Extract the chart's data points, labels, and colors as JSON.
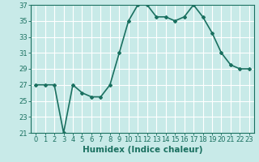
{
  "x": [
    0,
    1,
    2,
    3,
    4,
    5,
    6,
    7,
    8,
    9,
    10,
    11,
    12,
    13,
    14,
    15,
    16,
    17,
    18,
    19,
    20,
    21,
    22,
    23
  ],
  "y": [
    27,
    27,
    27,
    21,
    27,
    26,
    25.5,
    25.5,
    27,
    31,
    35,
    37,
    37,
    35.5,
    35.5,
    35,
    35.5,
    37,
    35.5,
    33.5,
    31,
    29.5,
    29,
    29
  ],
  "line_color": "#1a7060",
  "marker_style": "D",
  "marker_size": 2,
  "bg_color": "#c8eae8",
  "grid_color": "#ffffff",
  "xlabel": "Humidex (Indice chaleur)",
  "ylim": [
    21,
    37
  ],
  "xlim": [
    -0.5,
    23.5
  ],
  "yticks": [
    21,
    23,
    25,
    27,
    29,
    31,
    33,
    35,
    37
  ],
  "xticks": [
    0,
    1,
    2,
    3,
    4,
    5,
    6,
    7,
    8,
    9,
    10,
    11,
    12,
    13,
    14,
    15,
    16,
    17,
    18,
    19,
    20,
    21,
    22,
    23
  ],
  "tick_color": "#1a7060",
  "tick_label_color": "#1a7060",
  "spine_color": "#1a7060",
  "xlabel_color": "#1a7060",
  "xlabel_fontsize": 7.5,
  "tick_fontsize": 6,
  "line_width": 1.2
}
